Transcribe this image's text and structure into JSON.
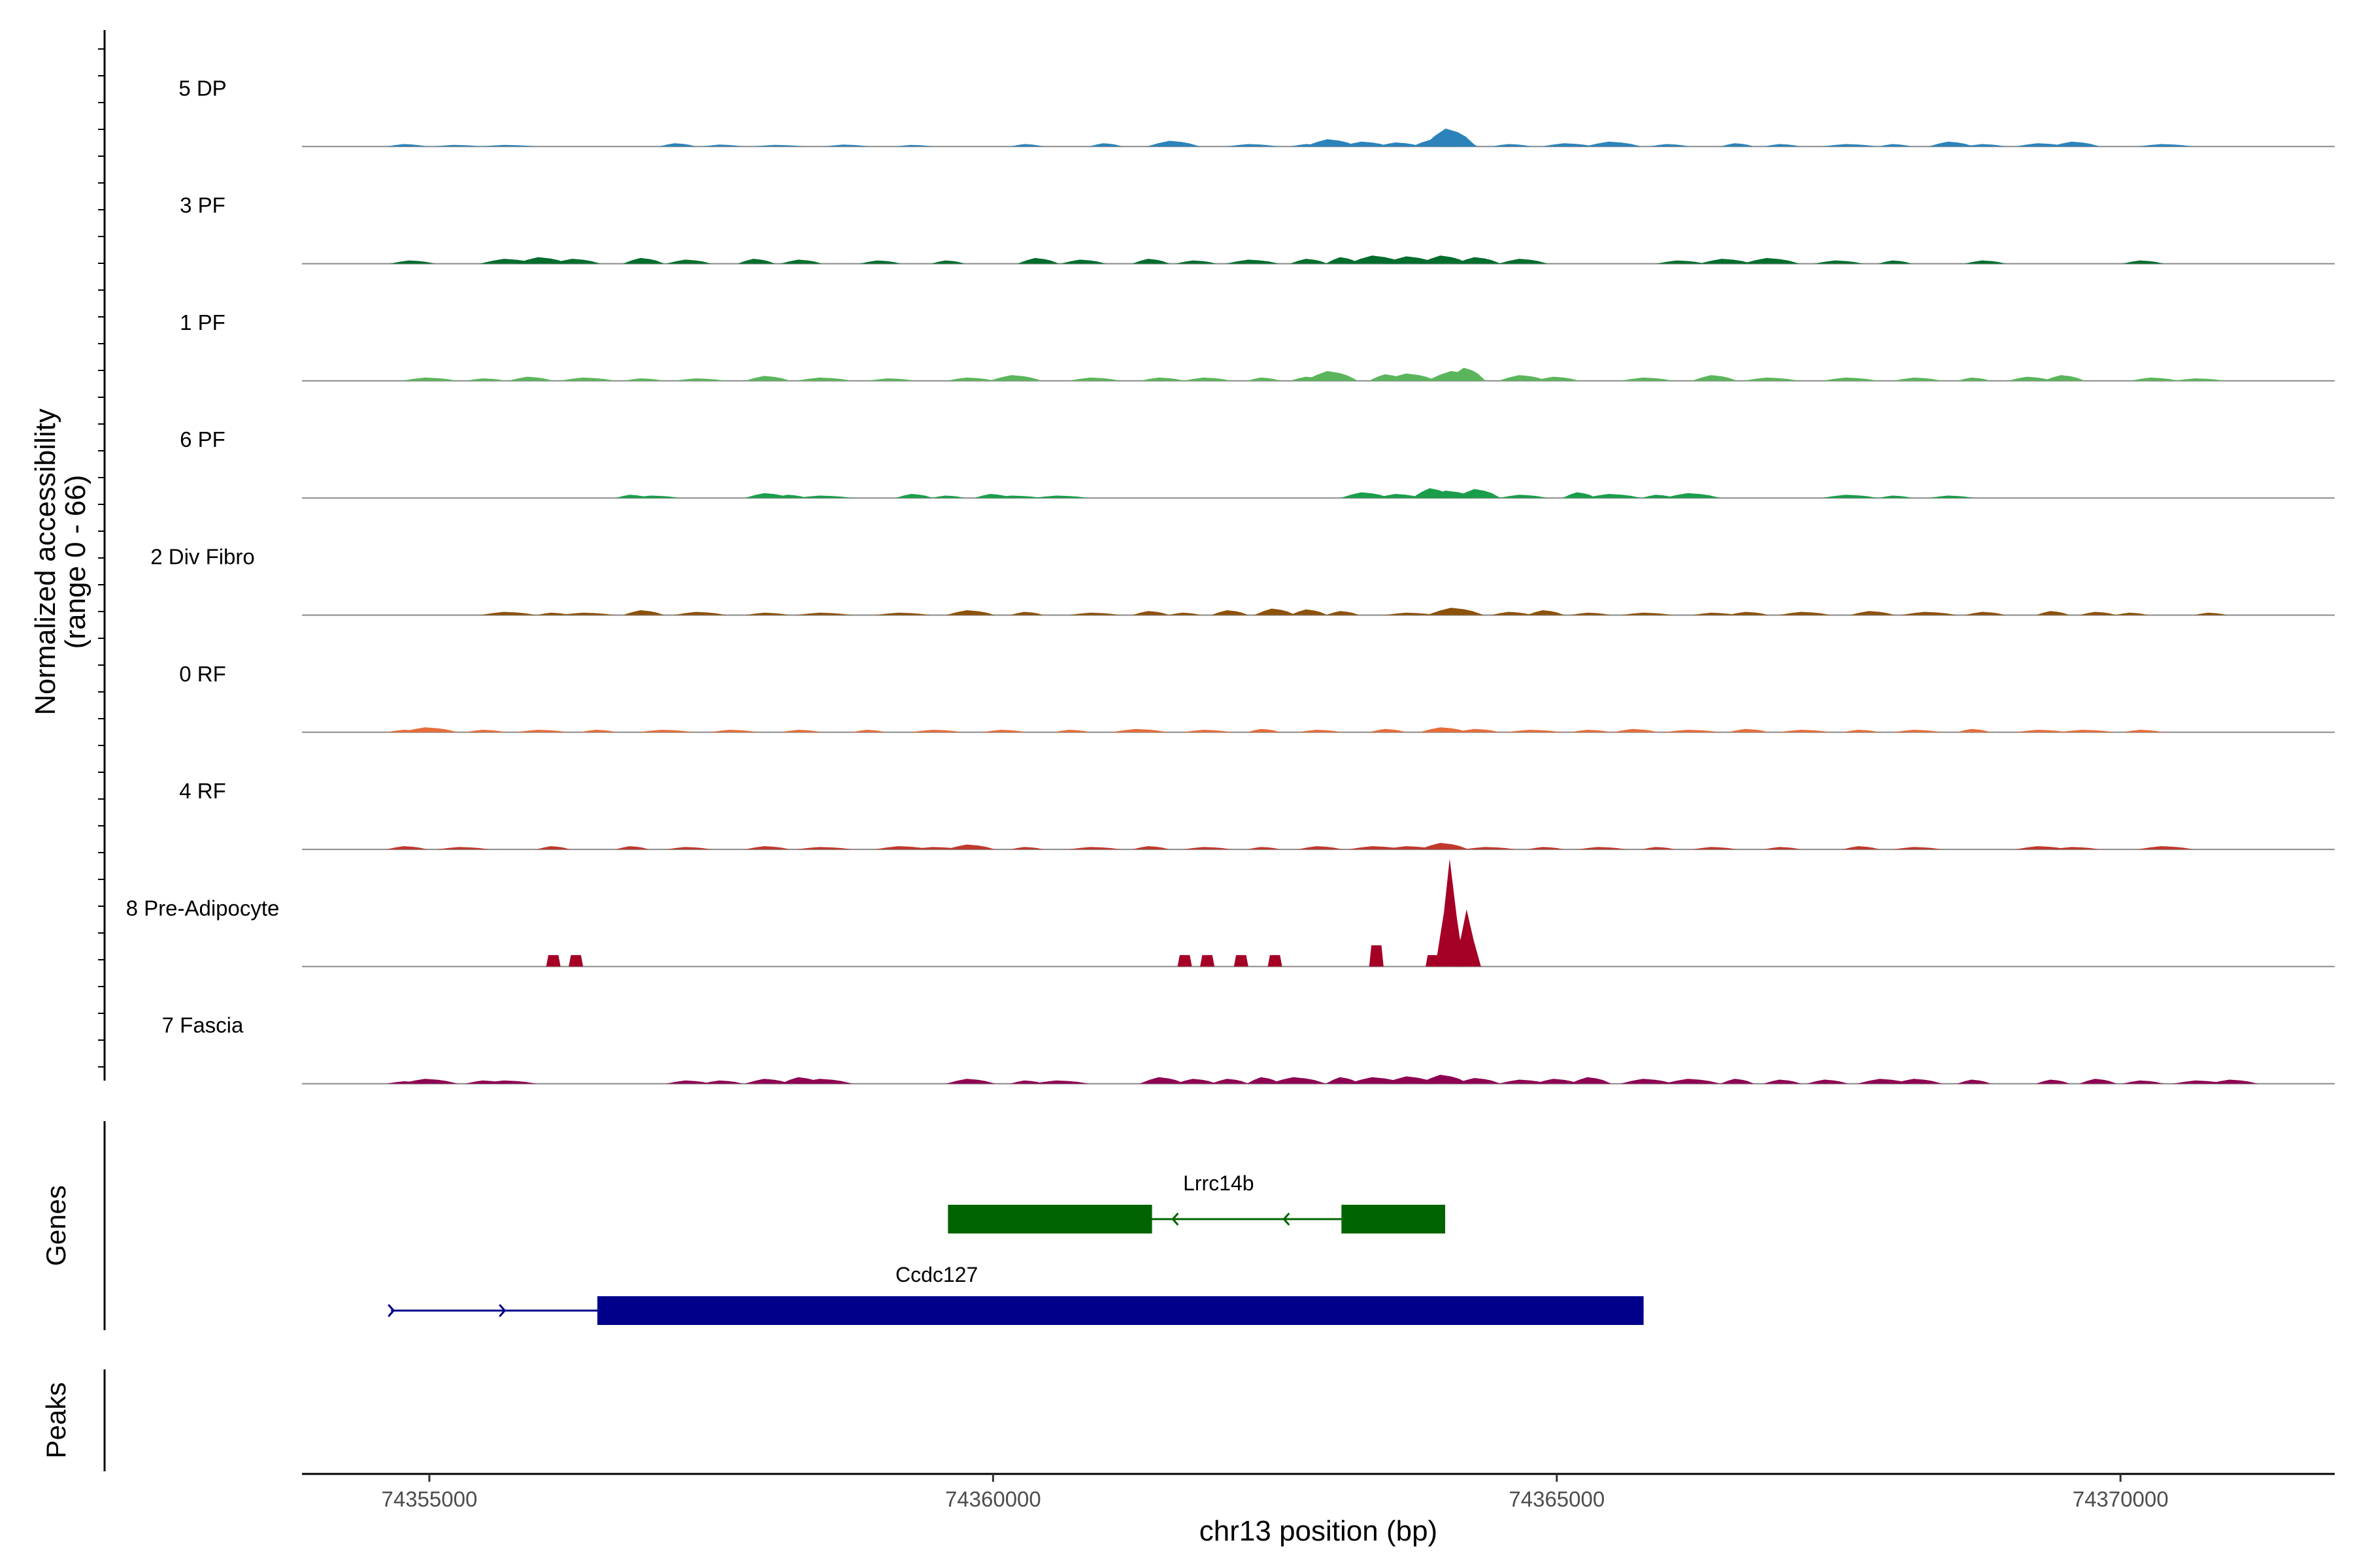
{
  "chart_data": {
    "type": "area",
    "chromosome": "chr13",
    "xlabel": "chr13 position (bp)",
    "ylabel_line1": "Normalized accessibility",
    "ylabel_line2": "(range 0 - 66)",
    "ylim": [
      0,
      66
    ],
    "xlim": [
      74353870,
      74371900
    ],
    "x_ticks": [
      74355000,
      74360000,
      74365000,
      74370000
    ],
    "x_tick_labels": [
      "74355000",
      "74360000",
      "74365000",
      "74370000"
    ],
    "grid": false,
    "legend": "none",
    "series": [
      {
        "name": "5 DP",
        "color": "#2b83ba",
        "peaks": [
          [
            74354800,
            1.5
          ],
          [
            74355250,
            1
          ],
          [
            74355700,
            1
          ],
          [
            74357200,
            2
          ],
          [
            74357600,
            1.2
          ],
          [
            74358100,
            1
          ],
          [
            74358700,
            1.2
          ],
          [
            74359300,
            1
          ],
          [
            74360300,
            1.5
          ],
          [
            74361000,
            2
          ],
          [
            74361600,
            3.5
          ],
          [
            74362300,
            1.5
          ],
          [
            74362800,
            1.5
          ],
          [
            74363000,
            4.5
          ],
          [
            74363300,
            3
          ],
          [
            74363600,
            2.5
          ],
          [
            74363900,
            4
          ],
          [
            74364050,
            11
          ],
          [
            74364150,
            4
          ],
          [
            74364600,
            1.5
          ],
          [
            74365100,
            2
          ],
          [
            74365500,
            3
          ],
          [
            74366000,
            1.5
          ],
          [
            74366600,
            2
          ],
          [
            74367000,
            1.5
          ],
          [
            74367600,
            1.5
          ],
          [
            74368000,
            1.5
          ],
          [
            74368500,
            3
          ],
          [
            74368800,
            1.5
          ],
          [
            74369300,
            2
          ],
          [
            74369600,
            3
          ],
          [
            74370400,
            1.5
          ]
        ]
      },
      {
        "name": "3 PF",
        "color": "#006d2c",
        "peaks": [
          [
            74354850,
            2
          ],
          [
            74355700,
            3
          ],
          [
            74356000,
            4
          ],
          [
            74356300,
            3
          ],
          [
            74356900,
            3.5
          ],
          [
            74357300,
            2.5
          ],
          [
            74357900,
            3
          ],
          [
            74358300,
            2.5
          ],
          [
            74359000,
            2
          ],
          [
            74359600,
            2
          ],
          [
            74360400,
            3.5
          ],
          [
            74360800,
            2.5
          ],
          [
            74361400,
            3
          ],
          [
            74361800,
            2
          ],
          [
            74362300,
            2.5
          ],
          [
            74362800,
            3
          ],
          [
            74363100,
            4
          ],
          [
            74363400,
            5
          ],
          [
            74363700,
            4.5
          ],
          [
            74364000,
            5
          ],
          [
            74364300,
            4
          ],
          [
            74364700,
            3
          ],
          [
            74366100,
            2
          ],
          [
            74366500,
            3
          ],
          [
            74366900,
            3.5
          ],
          [
            74367500,
            2
          ],
          [
            74368000,
            2
          ],
          [
            74368800,
            2
          ],
          [
            74370200,
            2
          ]
        ]
      },
      {
        "name": "1 PF",
        "color": "#5bb55c",
        "peaks": [
          [
            74355000,
            2
          ],
          [
            74355500,
            1.5
          ],
          [
            74355900,
            2.5
          ],
          [
            74356400,
            2
          ],
          [
            74356900,
            1.5
          ],
          [
            74357400,
            1.5
          ],
          [
            74358000,
            3
          ],
          [
            74358500,
            2
          ],
          [
            74359100,
            1.5
          ],
          [
            74359800,
            2
          ],
          [
            74360200,
            3.5
          ],
          [
            74360900,
            2
          ],
          [
            74361500,
            2
          ],
          [
            74361900,
            2
          ],
          [
            74362400,
            2
          ],
          [
            74362800,
            2.5
          ],
          [
            74363000,
            6
          ],
          [
            74363500,
            4
          ],
          [
            74363700,
            4.5
          ],
          [
            74364100,
            6
          ],
          [
            74364200,
            8
          ],
          [
            74364700,
            3.5
          ],
          [
            74365000,
            2.5
          ],
          [
            74365800,
            2
          ],
          [
            74366400,
            3.5
          ],
          [
            74366900,
            2
          ],
          [
            74367600,
            2
          ],
          [
            74368200,
            2
          ],
          [
            74368700,
            2
          ],
          [
            74369200,
            2.5
          ],
          [
            74369500,
            3.5
          ],
          [
            74370300,
            2
          ],
          [
            74370700,
            1.5
          ]
        ]
      },
      {
        "name": "6 PF",
        "color": "#1b9e4b",
        "peaks": [
          [
            74356800,
            2
          ],
          [
            74357000,
            1.5
          ],
          [
            74358000,
            3
          ],
          [
            74358200,
            2
          ],
          [
            74358500,
            1.5
          ],
          [
            74359300,
            2.5
          ],
          [
            74359600,
            1.5
          ],
          [
            74360000,
            2.5
          ],
          [
            74360200,
            1.5
          ],
          [
            74360600,
            1.5
          ],
          [
            74363300,
            3.5
          ],
          [
            74363600,
            2.5
          ],
          [
            74363900,
            6
          ],
          [
            74364050,
            4.5
          ],
          [
            74364300,
            5.5
          ],
          [
            74364700,
            2
          ],
          [
            74365200,
            3.5
          ],
          [
            74365500,
            2.5
          ],
          [
            74365900,
            2
          ],
          [
            74366200,
            3
          ],
          [
            74367600,
            2
          ],
          [
            74368000,
            1.5
          ],
          [
            74368500,
            1.5
          ]
        ]
      },
      {
        "name": "2 Div Fibro",
        "color": "#8c510a",
        "peaks": [
          [
            74355700,
            2
          ],
          [
            74356100,
            1.5
          ],
          [
            74356400,
            1.5
          ],
          [
            74356900,
            3
          ],
          [
            74357400,
            2
          ],
          [
            74358000,
            1.5
          ],
          [
            74358500,
            1.5
          ],
          [
            74359200,
            1.5
          ],
          [
            74359800,
            3
          ],
          [
            74360300,
            2
          ],
          [
            74360900,
            1.5
          ],
          [
            74361400,
            2.5
          ],
          [
            74361700,
            1.5
          ],
          [
            74362100,
            3
          ],
          [
            74362500,
            4
          ],
          [
            74362800,
            3.5
          ],
          [
            74363100,
            2.5
          ],
          [
            74363700,
            1.5
          ],
          [
            74364100,
            4.5
          ],
          [
            74364600,
            2
          ],
          [
            74364900,
            3
          ],
          [
            74365300,
            1.5
          ],
          [
            74365800,
            1.5
          ],
          [
            74366400,
            1.5
          ],
          [
            74366700,
            2
          ],
          [
            74367200,
            2
          ],
          [
            74367800,
            2.5
          ],
          [
            74368300,
            2
          ],
          [
            74368800,
            2
          ],
          [
            74369400,
            2.5
          ],
          [
            74369800,
            2
          ],
          [
            74370100,
            1.5
          ],
          [
            74370800,
            1.5
          ]
        ]
      },
      {
        "name": "0 RF",
        "color": "#e86d3a",
        "peaks": [
          [
            74354800,
            1.5
          ],
          [
            74355000,
            3
          ],
          [
            74355500,
            1.5
          ],
          [
            74356000,
            1.5
          ],
          [
            74356500,
            1.5
          ],
          [
            74357100,
            1.5
          ],
          [
            74357700,
            1.5
          ],
          [
            74358300,
            1.5
          ],
          [
            74358900,
            1.5
          ],
          [
            74359500,
            1.5
          ],
          [
            74360100,
            1.5
          ],
          [
            74360700,
            1.5
          ],
          [
            74361300,
            2
          ],
          [
            74361900,
            1.5
          ],
          [
            74362400,
            2
          ],
          [
            74362900,
            1.5
          ],
          [
            74363500,
            2
          ],
          [
            74364000,
            3
          ],
          [
            74364300,
            2
          ],
          [
            74364800,
            1.5
          ],
          [
            74365300,
            1.5
          ],
          [
            74365700,
            2
          ],
          [
            74366200,
            1.5
          ],
          [
            74366700,
            2
          ],
          [
            74367200,
            1.5
          ],
          [
            74367700,
            1.5
          ],
          [
            74368200,
            1.5
          ],
          [
            74368700,
            2
          ],
          [
            74369300,
            1.5
          ],
          [
            74369700,
            1.5
          ],
          [
            74370200,
            1.5
          ]
        ]
      },
      {
        "name": "4 RF",
        "color": "#c0392b",
        "peaks": [
          [
            74354800,
            2
          ],
          [
            74355300,
            1.5
          ],
          [
            74356100,
            2
          ],
          [
            74356800,
            2
          ],
          [
            74357300,
            1.5
          ],
          [
            74358000,
            2
          ],
          [
            74358500,
            1.5
          ],
          [
            74359200,
            2
          ],
          [
            74359500,
            1.5
          ],
          [
            74359800,
            3
          ],
          [
            74360300,
            1.5
          ],
          [
            74360900,
            1.5
          ],
          [
            74361400,
            2
          ],
          [
            74361900,
            1.5
          ],
          [
            74362400,
            1.5
          ],
          [
            74362900,
            2
          ],
          [
            74363400,
            2
          ],
          [
            74363700,
            2
          ],
          [
            74364000,
            4
          ],
          [
            74364400,
            1.5
          ],
          [
            74364900,
            1.5
          ],
          [
            74365400,
            1.5
          ],
          [
            74365900,
            1.5
          ],
          [
            74366400,
            1.5
          ],
          [
            74367000,
            1.5
          ],
          [
            74367700,
            2
          ],
          [
            74368200,
            1.5
          ],
          [
            74369300,
            2
          ],
          [
            74369600,
            1.5
          ],
          [
            74370400,
            2
          ]
        ]
      },
      {
        "name": "8 Pre-Adipocyte",
        "color": "#a50026",
        "peaks": [
          [
            74356100,
            7
          ],
          [
            74356300,
            7
          ],
          [
            74361700,
            7
          ],
          [
            74361900,
            7
          ],
          [
            74362200,
            7
          ],
          [
            74362500,
            7
          ],
          [
            74363400,
            13
          ],
          [
            74363900,
            7
          ],
          [
            74364050,
            66
          ],
          [
            74364200,
            35
          ]
        ]
      },
      {
        "name": "7 Fascia",
        "color": "#8e0152",
        "peaks": [
          [
            74354800,
            1.5
          ],
          [
            74355000,
            3
          ],
          [
            74355500,
            2
          ],
          [
            74355700,
            2
          ],
          [
            74357300,
            2
          ],
          [
            74357600,
            2
          ],
          [
            74358000,
            3
          ],
          [
            74358300,
            4
          ],
          [
            74358500,
            3
          ],
          [
            74359800,
            3
          ],
          [
            74360300,
            2
          ],
          [
            74360600,
            2
          ],
          [
            74361500,
            4
          ],
          [
            74361800,
            3
          ],
          [
            74362100,
            3
          ],
          [
            74362400,
            4
          ],
          [
            74362700,
            4
          ],
          [
            74363100,
            4
          ],
          [
            74363400,
            4
          ],
          [
            74363700,
            4.5
          ],
          [
            74364000,
            5.5
          ],
          [
            74364300,
            3.5
          ],
          [
            74364700,
            2.5
          ],
          [
            74365000,
            3
          ],
          [
            74365300,
            4
          ],
          [
            74365800,
            3
          ],
          [
            74366200,
            3
          ],
          [
            74366600,
            3
          ],
          [
            74367000,
            2.5
          ],
          [
            74367400,
            2.5
          ],
          [
            74367900,
            3
          ],
          [
            74368200,
            3
          ],
          [
            74368700,
            2.5
          ],
          [
            74369400,
            2.5
          ],
          [
            74369800,
            3
          ],
          [
            74370200,
            2
          ],
          [
            74370700,
            2
          ],
          [
            74371000,
            2.5
          ]
        ]
      }
    ],
    "genes": [
      {
        "name": "Lrrc14b",
        "strand": "-",
        "color": "#006400",
        "start": 74359600,
        "end": 74364010,
        "exons": [
          [
            74359600,
            74361410
          ],
          [
            74363090,
            74364010
          ]
        ]
      },
      {
        "name": "Ccdc127",
        "strand": "+",
        "color": "#00008b",
        "start": 74354660,
        "end": 74365770,
        "exons": [
          [
            74356490,
            74365770
          ]
        ]
      }
    ],
    "panels": {
      "genes_title": "Genes",
      "peaks_title": "Peaks"
    }
  }
}
